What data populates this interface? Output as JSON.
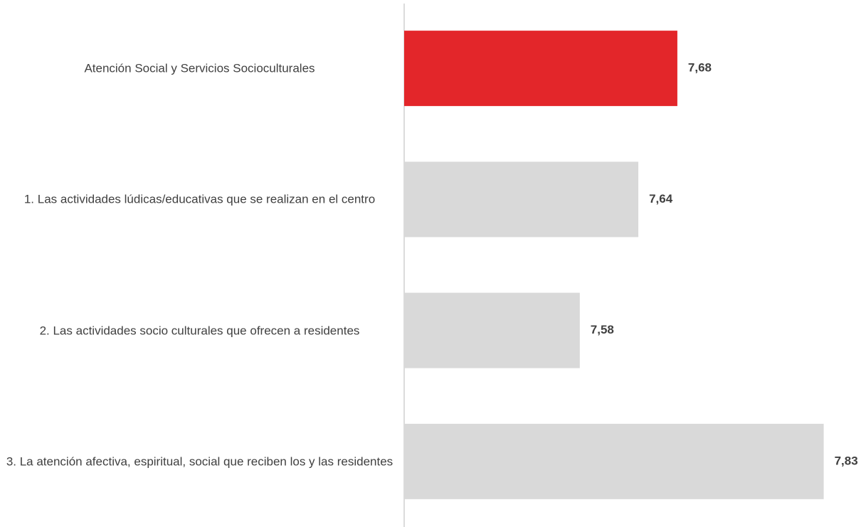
{
  "chart_data": {
    "type": "barh",
    "categories": [
      "Atención Social y Servicios Socioculturales",
      "1. Las actividades lúdicas/educativas que se realizan en el centro",
      "2. Las actividades socio culturales que ofrecen a residentes",
      "3. La atención afectiva, espiritual, social que reciben los y las residentes"
    ],
    "values": [
      7.68,
      7.64,
      7.58,
      7.83
    ],
    "value_labels": [
      "7,68",
      "7,64",
      "7,58",
      "7,83"
    ],
    "colors": [
      "#e3262a",
      "#d9d9d9",
      "#d9d9d9",
      "#d9d9d9"
    ],
    "xlim": [
      7.4,
      7.85
    ]
  }
}
